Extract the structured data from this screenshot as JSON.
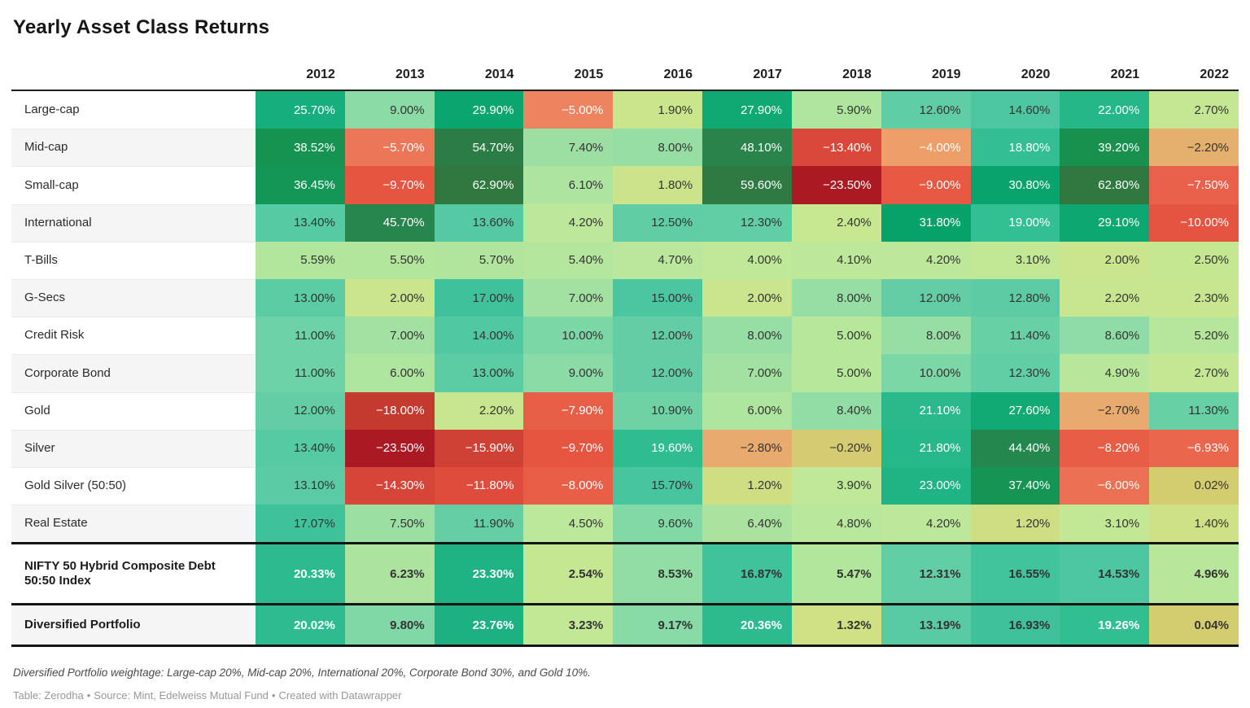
{
  "title": "Yearly Asset Class Returns",
  "footer": {
    "note": "Diversified Portfolio weightage: Large-cap 20%, Mid-cap 20%, International 20%, Corporate Bond 30%, and Gold 10%.",
    "credits": [
      "Table: Zerodha",
      "Source: Mint, Edelweiss Mutual Fund",
      "Created with Datawrapper"
    ],
    "credit_separator": "•"
  },
  "color_scale": {
    "stops": [
      [
        -24,
        "#a91622"
      ],
      [
        -18,
        "#c43a2f"
      ],
      [
        -14,
        "#d8463a"
      ],
      [
        -11,
        "#e24e3d"
      ],
      [
        -9,
        "#e75942"
      ],
      [
        -7.5,
        "#e9614a"
      ],
      [
        -6.3,
        "#eb6b51"
      ],
      [
        -5.3,
        "#ed7f5c"
      ],
      [
        -4.6,
        "#ee8b62"
      ],
      [
        -4,
        "#ed9e69"
      ],
      [
        -3,
        "#e9a86d"
      ],
      [
        -2,
        "#e4b26d"
      ],
      [
        -1,
        "#dcc16e"
      ],
      [
        -0.3,
        "#d6ca74"
      ],
      [
        0.2,
        "#d2ce6e"
      ],
      [
        0.8,
        "#d0d87a"
      ],
      [
        1.3,
        "#cfe085"
      ],
      [
        2.1,
        "#c9e68f"
      ],
      [
        3,
        "#c3e895"
      ],
      [
        4.2,
        "#bee899"
      ],
      [
        5.5,
        "#b3e69d"
      ],
      [
        6.5,
        "#a9e3a0"
      ],
      [
        7.5,
        "#9cdfa3"
      ],
      [
        8.8,
        "#8edca6"
      ],
      [
        10,
        "#7cd7a6"
      ],
      [
        11.3,
        "#68d0a5"
      ],
      [
        12.6,
        "#5fcda5"
      ],
      [
        14,
        "#50c8a2"
      ],
      [
        15.5,
        "#47c59f"
      ],
      [
        17,
        "#3fc29b"
      ],
      [
        18.8,
        "#33bf93"
      ],
      [
        20.5,
        "#2bbb8d"
      ],
      [
        22,
        "#25b787"
      ],
      [
        23.6,
        "#1db181"
      ],
      [
        26,
        "#16ae7c"
      ],
      [
        28,
        "#10a973"
      ],
      [
        30,
        "#0ba66f"
      ],
      [
        32,
        "#07a169"
      ],
      [
        34,
        "#0c9c61"
      ],
      [
        36.5,
        "#149657"
      ],
      [
        39,
        "#17914f"
      ],
      [
        42,
        "#1f8b4e"
      ],
      [
        46,
        "#27864e"
      ],
      [
        50,
        "#2a8249"
      ],
      [
        55,
        "#2c7d45"
      ],
      [
        59,
        "#2e7a42"
      ],
      [
        63,
        "#2f7941"
      ]
    ],
    "white_text_pos_min": 18.5,
    "white_text_neg_max": -3.6,
    "dark_text_color": "#333333",
    "white_text_color": "#ffffff",
    "row_stripe_color": "#f5f5f5",
    "rule_color": "#1a1a1a"
  },
  "chart_data": {
    "type": "heatmap",
    "title": "Yearly Asset Class Returns",
    "unit": "%",
    "columns": [
      "2012",
      "2013",
      "2014",
      "2015",
      "2016",
      "2017",
      "2018",
      "2019",
      "2020",
      "2021",
      "2022"
    ],
    "rows": [
      {
        "label": "Large-cap",
        "values": [
          25.7,
          9.0,
          29.9,
          -5.0,
          1.9,
          27.9,
          5.9,
          12.6,
          14.6,
          22.0,
          2.7
        ]
      },
      {
        "label": "Mid-cap",
        "values": [
          38.52,
          -5.7,
          54.7,
          7.4,
          8.0,
          48.1,
          -13.4,
          -4.0,
          18.8,
          39.2,
          -2.2
        ]
      },
      {
        "label": "Small-cap",
        "values": [
          36.45,
          -9.7,
          62.9,
          6.1,
          1.8,
          59.6,
          -23.5,
          -9.0,
          30.8,
          62.8,
          -7.5
        ]
      },
      {
        "label": "International",
        "values": [
          13.4,
          45.7,
          13.6,
          4.2,
          12.5,
          12.3,
          2.4,
          31.8,
          19.0,
          29.1,
          -10.0
        ]
      },
      {
        "label": "T-Bills",
        "values": [
          5.59,
          5.5,
          5.7,
          5.4,
          4.7,
          4.0,
          4.1,
          4.2,
          3.1,
          2.0,
          2.5
        ]
      },
      {
        "label": "G-Secs",
        "values": [
          13.0,
          2.0,
          17.0,
          7.0,
          15.0,
          2.0,
          8.0,
          12.0,
          12.8,
          2.2,
          2.3
        ]
      },
      {
        "label": "Credit Risk",
        "values": [
          11.0,
          7.0,
          14.0,
          10.0,
          12.0,
          8.0,
          5.0,
          8.0,
          11.4,
          8.6,
          5.2
        ]
      },
      {
        "label": "Corporate Bond",
        "values": [
          11.0,
          6.0,
          13.0,
          9.0,
          12.0,
          7.0,
          5.0,
          10.0,
          12.3,
          4.9,
          2.7
        ]
      },
      {
        "label": "Gold",
        "values": [
          12.0,
          -18.0,
          2.2,
          -7.9,
          10.9,
          6.0,
          8.4,
          21.1,
          27.6,
          -2.7,
          11.3
        ]
      },
      {
        "label": "Silver",
        "values": [
          13.4,
          -23.5,
          -15.9,
          -9.7,
          19.6,
          -2.8,
          -0.2,
          21.8,
          44.4,
          -8.2,
          -6.93
        ]
      },
      {
        "label": "Gold Silver (50:50)",
        "values": [
          13.1,
          -14.3,
          -11.8,
          -8.0,
          15.7,
          1.2,
          3.9,
          23.0,
          37.4,
          -6.0,
          0.02
        ]
      },
      {
        "label": "Real Estate",
        "values": [
          17.07,
          7.5,
          11.9,
          4.5,
          9.6,
          6.4,
          4.8,
          4.2,
          1.2,
          3.1,
          1.4
        ]
      }
    ],
    "summary_rows": [
      {
        "label": "NIFTY 50 Hybrid Composite Debt 50:50 Index",
        "values": [
          20.33,
          6.23,
          23.3,
          2.54,
          8.53,
          16.87,
          5.47,
          12.31,
          16.55,
          14.53,
          4.96
        ]
      },
      {
        "label": "Diversified Portfolio",
        "values": [
          20.02,
          9.8,
          23.76,
          3.23,
          9.17,
          20.36,
          1.32,
          13.19,
          16.93,
          19.26,
          0.04
        ]
      }
    ]
  }
}
